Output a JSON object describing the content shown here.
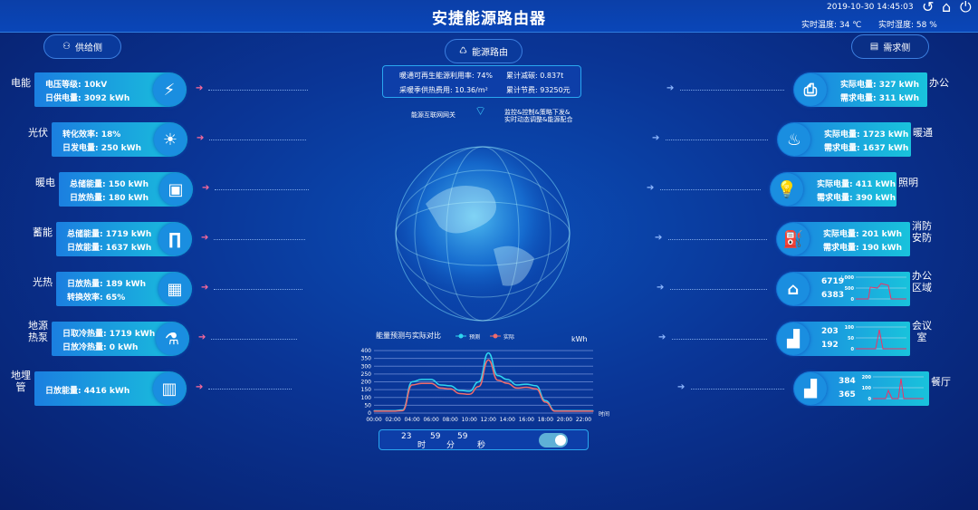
{
  "header": {
    "title": "安捷能源路由器",
    "datetime": "2019-10-30 14:45:03",
    "temperature": "实时温度: 34 ℃",
    "humidity": "实时湿度: 58 %"
  },
  "nav": {
    "supply": "供给侧",
    "router": "能源路由",
    "demand": "需求侧"
  },
  "info": {
    "renewable": "暖通可再生能源利用率: 74%",
    "carbon": "累计减碳: 0.837t",
    "heating_cost": "采暖季供热费用: 10.36/m²",
    "savings": "累计节费: 93250元"
  },
  "gateway": {
    "label": "能源互联网网关",
    "desc1": "监控&控制&策略下发&",
    "desc2": "实时动态调整&能源配合"
  },
  "supply": [
    {
      "name": "电能",
      "icon": "lightning-icon",
      "l1": "电压等级: 10kV",
      "l2": "日供电量: 3092  kWh"
    },
    {
      "name": "光伏",
      "icon": "solar-sun-icon",
      "l1": "转化效率: 18%",
      "l2": "日发电量: 250   kWh"
    },
    {
      "name": "暖电",
      "icon": "meter-icon",
      "l1": "总储能量: 150   kWh",
      "l2": "日放热量: 180   kWh"
    },
    {
      "name": "蓄能",
      "icon": "pipe-icon",
      "l1": "总储能量: 1719      kWh",
      "l2": "日放能量: 1637      kWh"
    },
    {
      "name": "光热",
      "icon": "solar-panel-icon",
      "l1": "日放热量: 189    kWh",
      "l2": "转换效率: 65%"
    },
    {
      "name": "地源热泵",
      "icon": "heat-pump-icon",
      "l1": "日取冷热量: 1719  kWh",
      "l2": "日放冷热量: 0         kWh"
    },
    {
      "name": "地埋管",
      "icon": "buried-pipe-icon",
      "l1": "日放能量: 4416     kWh",
      "l2": ""
    }
  ],
  "demand": [
    {
      "name": "办公",
      "icon": "printer-icon",
      "l1": "实际电量: 327      kWh",
      "l2": "需求电量: 311      kWh"
    },
    {
      "name": "暖通",
      "icon": "hvac-icon",
      "l1": "实际电量: 1723    kWh",
      "l2": "需求电量: 1637    kWh"
    },
    {
      "name": "照明",
      "icon": "bulb-icon",
      "l1": "实际电量: 411      kWh",
      "l2": "需求电量: 390      kWh"
    },
    {
      "name": "消防安防",
      "icon": "extinguisher-icon",
      "l1": "实际电量: 201      kWh",
      "l2": "需求电量: 190      kWh"
    },
    {
      "name": "办公区域",
      "icon": "building-icon",
      "l1": "6719",
      "l2": "6383",
      "ticks": [
        "1,000",
        "500",
        "0"
      ]
    },
    {
      "name": "会议室",
      "icon": "desk-icon",
      "l1": "203",
      "l2": "192",
      "ticks": [
        "100",
        "50",
        "0"
      ]
    },
    {
      "name": "餐厅",
      "icon": "desk-icon",
      "l1": "384",
      "l2": "365",
      "ticks": [
        "200",
        "100",
        "0"
      ]
    }
  ],
  "chart_data": {
    "type": "line",
    "title": "能量预测与实际对比",
    "ylabel": "kWh",
    "xlabel": "时间",
    "ylim": [
      0,
      400
    ],
    "grid": true,
    "legend": "top",
    "yticks": [
      "0",
      "50",
      "100",
      "150",
      "200",
      "250",
      "300",
      "350",
      "400"
    ],
    "xticks": [
      "00:00",
      "02:00",
      "04:00",
      "06:00",
      "08:00",
      "10:00",
      "12:00",
      "14:00",
      "16:00",
      "18:00",
      "20:00",
      "22:00"
    ],
    "x": [
      0,
      1,
      2,
      3,
      4,
      5,
      6,
      7,
      8,
      9,
      10,
      11,
      12,
      13,
      14,
      15,
      16,
      17,
      18,
      19,
      20,
      21,
      22,
      23
    ],
    "series": [
      {
        "name": "预测",
        "color": "#2fd6f0",
        "values": [
          15,
          15,
          15,
          20,
          200,
          215,
          215,
          180,
          175,
          145,
          140,
          200,
          385,
          240,
          215,
          180,
          185,
          175,
          80,
          15,
          15,
          15,
          15,
          15
        ]
      },
      {
        "name": "实际",
        "color": "#f06b6b",
        "values": [
          12,
          12,
          12,
          15,
          180,
          190,
          190,
          160,
          155,
          125,
          120,
          170,
          340,
          210,
          190,
          160,
          165,
          155,
          70,
          12,
          12,
          12,
          12,
          12
        ]
      }
    ]
  },
  "timer": {
    "h": "23",
    "h_unit": "时",
    "m": "59",
    "m_unit": "分",
    "s": "59",
    "s_unit": "秒",
    "toggle_on": true
  }
}
